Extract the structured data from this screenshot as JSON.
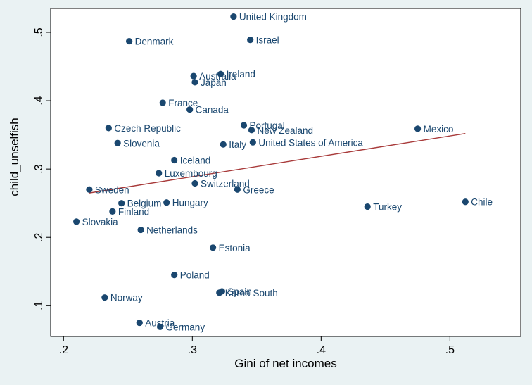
{
  "chart_data": {
    "type": "scatter",
    "xlabel": "Gini of net incomes",
    "ylabel": "child_unselfish",
    "xlim": [
      0.19,
      0.555
    ],
    "ylim": [
      0.055,
      0.535
    ],
    "xticks": [
      0.2,
      0.3,
      0.4,
      0.5
    ],
    "xtick_labels": [
      ".2",
      ".3",
      ".4",
      ".5"
    ],
    "yticks": [
      0.1,
      0.2,
      0.3,
      0.4,
      0.5
    ],
    "ytick_labels": [
      ".1",
      ".2",
      ".3",
      ".4",
      ".5"
    ],
    "grid": false,
    "legend": "none",
    "colors": {
      "background": "#eaf2f3",
      "plot_area": "#ffffff",
      "marker": "#1a476f",
      "fit_line": "#a83a3a"
    },
    "fit_line": {
      "x": [
        0.22,
        0.512
      ],
      "y": [
        0.265,
        0.352
      ]
    },
    "points": [
      {
        "label": "United Kingdom",
        "x": 0.332,
        "y": 0.523
      },
      {
        "label": "Denmark",
        "x": 0.251,
        "y": 0.487
      },
      {
        "label": "Israel",
        "x": 0.345,
        "y": 0.489
      },
      {
        "label": "Australia",
        "x": 0.301,
        "y": 0.436
      },
      {
        "label": "Ireland",
        "x": 0.322,
        "y": 0.439
      },
      {
        "label": "Japan",
        "x": 0.302,
        "y": 0.427
      },
      {
        "label": "France",
        "x": 0.277,
        "y": 0.397
      },
      {
        "label": "Canada",
        "x": 0.298,
        "y": 0.387
      },
      {
        "label": "Portugal",
        "x": 0.34,
        "y": 0.364
      },
      {
        "label": "New Zealand",
        "x": 0.346,
        "y": 0.357
      },
      {
        "label": "Czech Republic",
        "x": 0.235,
        "y": 0.36
      },
      {
        "label": "Mexico",
        "x": 0.475,
        "y": 0.359
      },
      {
        "label": "Slovenia",
        "x": 0.242,
        "y": 0.338
      },
      {
        "label": "Italy",
        "x": 0.324,
        "y": 0.336
      },
      {
        "label": "United States of America",
        "x": 0.347,
        "y": 0.339
      },
      {
        "label": "Iceland",
        "x": 0.286,
        "y": 0.313
      },
      {
        "label": "Luxembourg",
        "x": 0.274,
        "y": 0.294
      },
      {
        "label": "Switzerland",
        "x": 0.302,
        "y": 0.279
      },
      {
        "label": "Sweden",
        "x": 0.22,
        "y": 0.27
      },
      {
        "label": "Greece",
        "x": 0.335,
        "y": 0.27
      },
      {
        "label": "Belgium",
        "x": 0.245,
        "y": 0.25
      },
      {
        "label": "Hungary",
        "x": 0.28,
        "y": 0.251
      },
      {
        "label": "Turkey",
        "x": 0.436,
        "y": 0.245
      },
      {
        "label": "Chile",
        "x": 0.512,
        "y": 0.252
      },
      {
        "label": "Finland",
        "x": 0.238,
        "y": 0.238
      },
      {
        "label": "Slovakia",
        "x": 0.21,
        "y": 0.223
      },
      {
        "label": "Netherlands",
        "x": 0.26,
        "y": 0.211
      },
      {
        "label": "Estonia",
        "x": 0.316,
        "y": 0.185
      },
      {
        "label": "Poland",
        "x": 0.286,
        "y": 0.145
      },
      {
        "label": "Spain",
        "x": 0.323,
        "y": 0.121
      },
      {
        "label": "Korea South",
        "x": 0.321,
        "y": 0.119
      },
      {
        "label": "Norway",
        "x": 0.232,
        "y": 0.112
      },
      {
        "label": "Austria",
        "x": 0.259,
        "y": 0.075
      },
      {
        "label": "Germany",
        "x": 0.275,
        "y": 0.069
      }
    ]
  }
}
